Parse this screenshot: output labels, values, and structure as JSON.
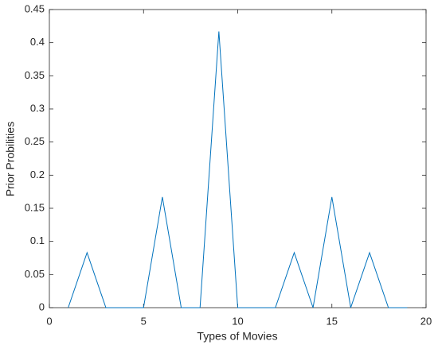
{
  "chart_data": {
    "type": "line",
    "xlabel": "Types of Movies",
    "ylabel": "Prior Probilities",
    "x": [
      1,
      2,
      3,
      4,
      5,
      6,
      7,
      8,
      9,
      10,
      11,
      12,
      13,
      14,
      15,
      16,
      17,
      18,
      19
    ],
    "series": [
      {
        "color": "#0072bd",
        "values": [
          0,
          0.083,
          0,
          0,
          0,
          0.167,
          0,
          0,
          0.417,
          0,
          0,
          0,
          0.083,
          0,
          0.167,
          0,
          0.083,
          0,
          0
        ]
      }
    ],
    "xlim": [
      0,
      20
    ],
    "xticks": [
      0,
      5,
      10,
      15,
      20
    ],
    "ylim": [
      0,
      0.45
    ],
    "yticks": [
      0,
      0.05,
      0.1,
      0.15,
      0.2,
      0.25,
      0.3,
      0.35,
      0.4,
      0.45
    ],
    "grid": false
  }
}
